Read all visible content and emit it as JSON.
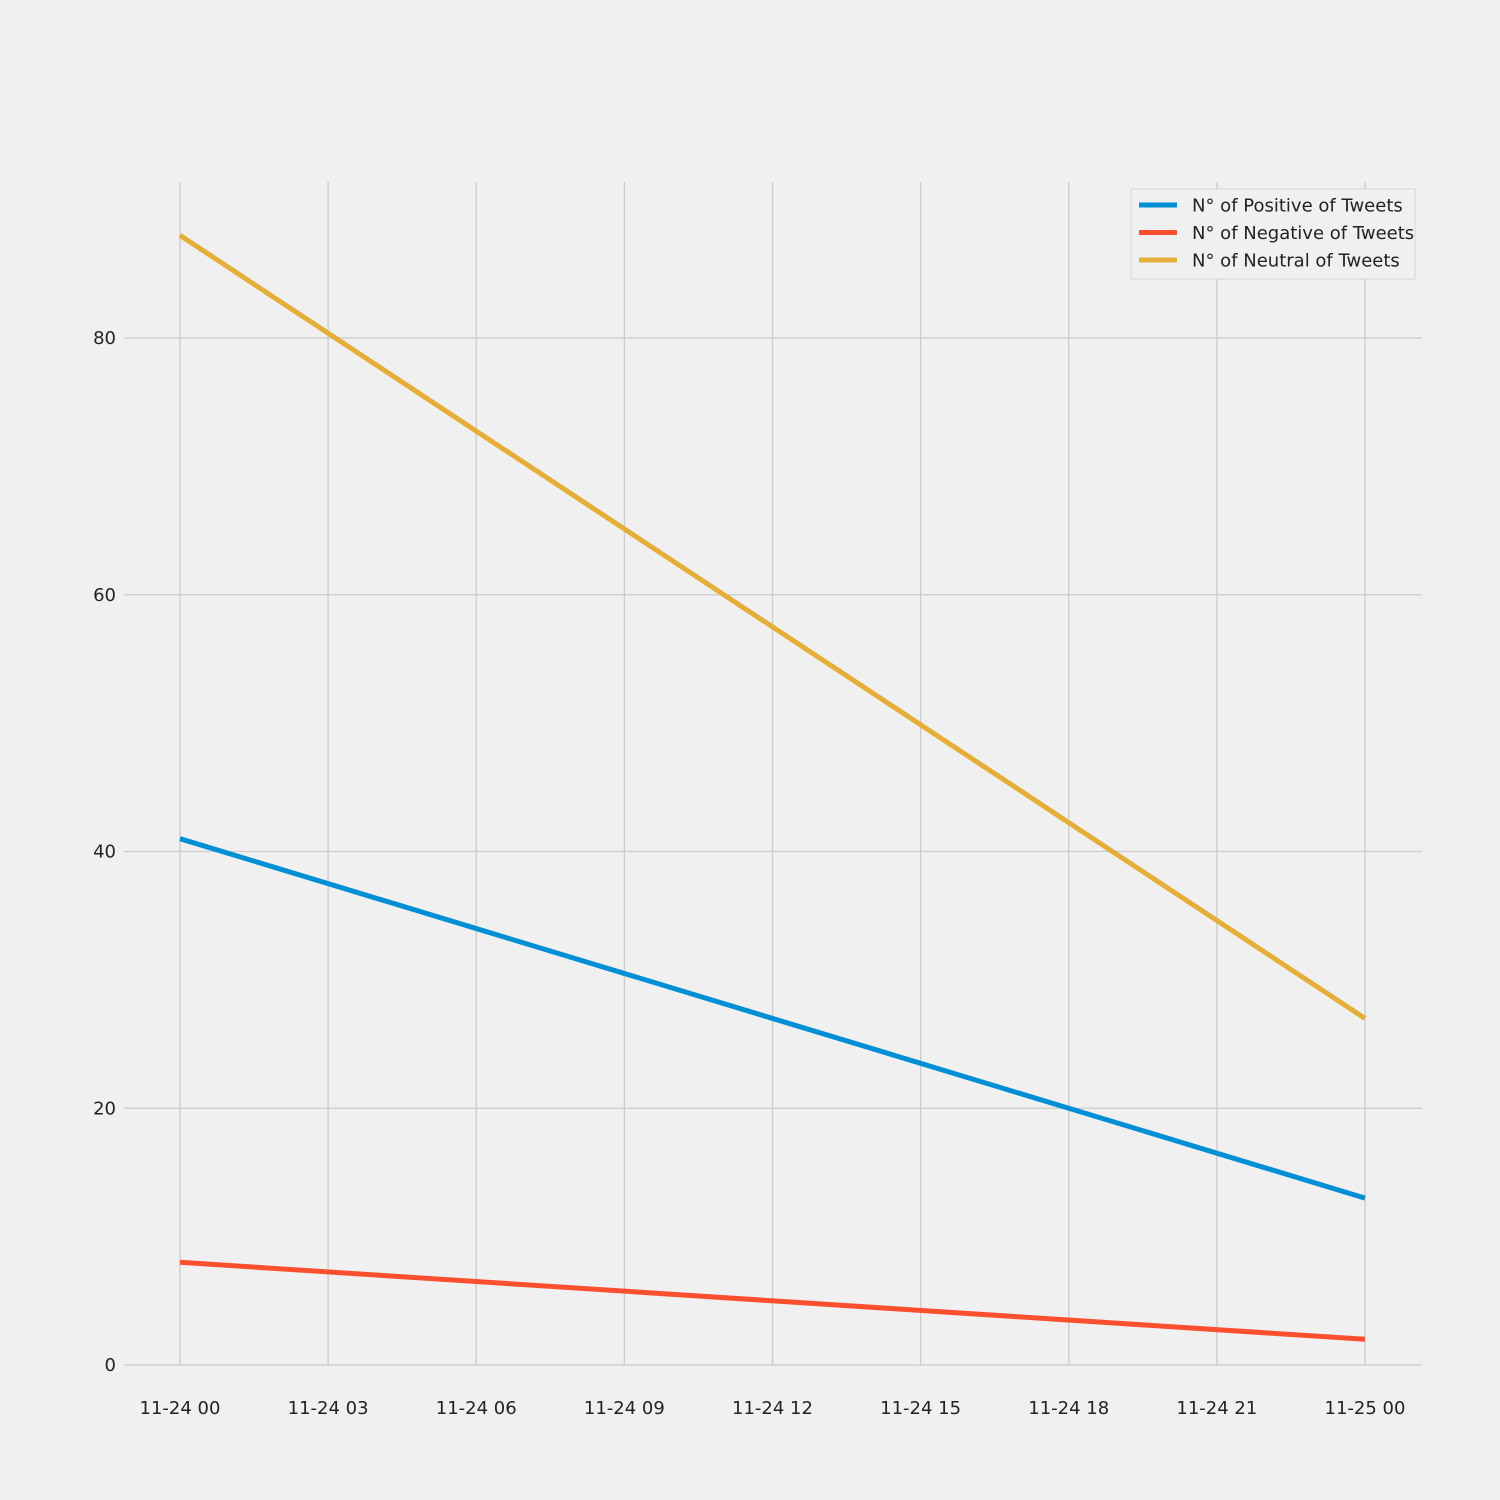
{
  "chart_data": {
    "type": "line",
    "title": "",
    "xlabel": "",
    "ylabel": "",
    "x": [
      "2024-11-24T00:00",
      "2024-11-25T00:00"
    ],
    "x_tick_labels": [
      "11-24 00",
      "11-24 03",
      "11-24 06",
      "11-24 09",
      "11-24 12",
      "11-24 15",
      "11-24 18",
      "11-24 21",
      "11-25 00"
    ],
    "y_ticks": [
      0,
      20,
      40,
      60,
      80
    ],
    "ylim": [
      0,
      92
    ],
    "grid": true,
    "legend_position": "top-right",
    "series": [
      {
        "name": "N° of Positive of Tweets",
        "values": [
          41,
          13
        ],
        "color": "#008fd5"
      },
      {
        "name": "N° of Negative of Tweets",
        "values": [
          8,
          2
        ],
        "color": "#fc4f30"
      },
      {
        "name": "N° of Neutral of Tweets",
        "values": [
          88,
          27
        ],
        "color": "#e5ae38"
      }
    ]
  }
}
